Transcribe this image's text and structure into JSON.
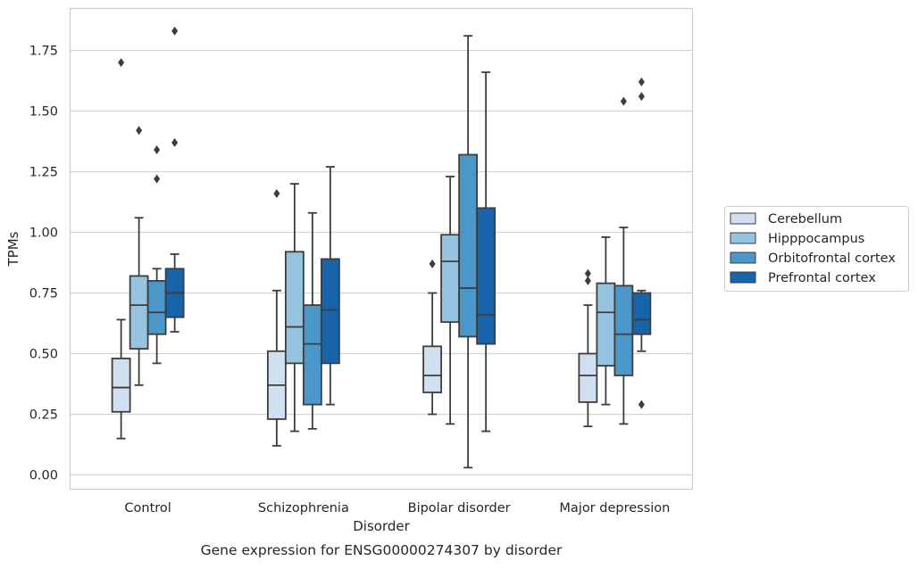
{
  "chart_data": {
    "type": "boxplot",
    "title": "Gene expression for ENSG00000274307 by disorder",
    "xlabel": "Disorder",
    "ylabel": "TPMs",
    "ylim": [
      -0.05,
      1.92
    ],
    "yticks": [
      "0.00",
      "0.25",
      "0.50",
      "0.75",
      "1.00",
      "1.25",
      "1.50",
      "1.75"
    ],
    "grid": "horizontal",
    "legend_position": "right",
    "categories": [
      "Control",
      "Schizophrenia",
      "Bipolar disorder",
      "Major depression"
    ],
    "series": [
      {
        "name": "Cerebellum",
        "color": "#d0e0f1",
        "boxes": [
          {
            "whislo": 0.15,
            "q1": 0.26,
            "med": 0.36,
            "q3": 0.48,
            "whishi": 0.64,
            "fliers": [
              1.7
            ]
          },
          {
            "whislo": 0.12,
            "q1": 0.23,
            "med": 0.37,
            "q3": 0.51,
            "whishi": 0.76,
            "fliers": [
              1.16
            ]
          },
          {
            "whislo": 0.25,
            "q1": 0.34,
            "med": 0.41,
            "q3": 0.53,
            "whishi": 0.75,
            "fliers": [
              0.87
            ]
          },
          {
            "whislo": 0.2,
            "q1": 0.3,
            "med": 0.41,
            "q3": 0.5,
            "whishi": 0.7,
            "fliers": [
              0.8,
              0.83
            ]
          }
        ]
      },
      {
        "name": "Hipppocampus",
        "color": "#94c4df",
        "boxes": [
          {
            "whislo": 0.37,
            "q1": 0.52,
            "med": 0.7,
            "q3": 0.82,
            "whishi": 1.06,
            "fliers": [
              1.42
            ]
          },
          {
            "whislo": 0.18,
            "q1": 0.46,
            "med": 0.61,
            "q3": 0.92,
            "whishi": 1.2,
            "fliers": []
          },
          {
            "whislo": 0.21,
            "q1": 0.63,
            "med": 0.88,
            "q3": 0.99,
            "whishi": 1.23,
            "fliers": []
          },
          {
            "whislo": 0.29,
            "q1": 0.45,
            "med": 0.67,
            "q3": 0.79,
            "whishi": 0.98,
            "fliers": []
          }
        ]
      },
      {
        "name": "Orbitofrontal cortex",
        "color": "#4b97c9",
        "boxes": [
          {
            "whislo": 0.46,
            "q1": 0.58,
            "med": 0.67,
            "q3": 0.8,
            "whishi": 0.85,
            "fliers": [
              1.22,
              1.34
            ]
          },
          {
            "whislo": 0.19,
            "q1": 0.29,
            "med": 0.54,
            "q3": 0.7,
            "whishi": 1.08,
            "fliers": []
          },
          {
            "whislo": 0.03,
            "q1": 0.57,
            "med": 0.77,
            "q3": 1.32,
            "whishi": 1.81,
            "fliers": []
          },
          {
            "whislo": 0.21,
            "q1": 0.41,
            "med": 0.58,
            "q3": 0.78,
            "whishi": 1.02,
            "fliers": [
              1.54
            ]
          }
        ]
      },
      {
        "name": "Prefrontal cortex",
        "color": "#1764ab",
        "boxes": [
          {
            "whislo": 0.59,
            "q1": 0.65,
            "med": 0.75,
            "q3": 0.85,
            "whishi": 0.91,
            "fliers": [
              1.37,
              1.83
            ]
          },
          {
            "whislo": 0.29,
            "q1": 0.46,
            "med": 0.68,
            "q3": 0.89,
            "whishi": 1.27,
            "fliers": []
          },
          {
            "whislo": 0.18,
            "q1": 0.54,
            "med": 0.66,
            "q3": 1.1,
            "whishi": 1.66,
            "fliers": []
          },
          {
            "whislo": 0.51,
            "q1": 0.58,
            "med": 0.64,
            "q3": 0.75,
            "whishi": 0.76,
            "fliers": [
              0.29,
              1.56,
              1.62
            ]
          }
        ]
      }
    ]
  }
}
